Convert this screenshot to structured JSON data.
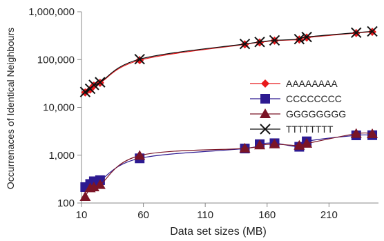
{
  "chart_data": {
    "type": "line",
    "title": "",
    "xlabel": "Data set sizes (MB)",
    "ylabel": "Occurrenaces of Identical Neighbours",
    "xlim": [
      10,
      250
    ],
    "ylim": [
      100,
      1000000
    ],
    "yscale": "log",
    "x_ticks": [
      10,
      60,
      110,
      160,
      210
    ],
    "x_tick_labels": [
      "10",
      "60",
      "110",
      "160",
      "210"
    ],
    "y_ticks": [
      100,
      1000,
      10000,
      100000,
      1000000
    ],
    "y_tick_labels": [
      "100",
      "1,000",
      "10,000",
      "100,000",
      "1,000,000"
    ],
    "grid": false,
    "legend_position": "right-middle",
    "series": [
      {
        "name": "AAAAAAAA",
        "color": "#e8191c",
        "marker": "diamond",
        "x": [
          13,
          17,
          20,
          25,
          57,
          142,
          154,
          166,
          186,
          192,
          232,
          245
        ],
        "y": [
          20500,
          23500,
          28500,
          32500,
          97000,
          208000,
          228000,
          248000,
          262000,
          288000,
          358000,
          380000
        ]
      },
      {
        "name": "CCCCCCCC",
        "color": "#2d1a91",
        "marker": "square",
        "x": [
          13,
          17,
          20,
          25,
          57,
          142,
          154,
          166,
          186,
          192,
          232,
          245
        ],
        "y": [
          215,
          250,
          285,
          300,
          860,
          1380,
          1700,
          1780,
          1500,
          1950,
          2600,
          2620
        ]
      },
      {
        "name": "GGGGGGGG",
        "color": "#7a1426",
        "marker": "triangle",
        "x": [
          13,
          17,
          20,
          25,
          57,
          142,
          154,
          166,
          186,
          192,
          232,
          245
        ],
        "y": [
          135,
          205,
          215,
          240,
          980,
          1390,
          1620,
          1700,
          1590,
          1750,
          2820,
          2780
        ]
      },
      {
        "name": "TTTTTTTT",
        "color": "#111111",
        "marker": "x",
        "x": [
          13,
          17,
          20,
          25,
          57,
          142,
          154,
          166,
          186,
          192,
          232,
          245
        ],
        "y": [
          21000,
          24500,
          29500,
          33500,
          102000,
          212000,
          233000,
          252000,
          267000,
          296000,
          365000,
          388000
        ]
      }
    ]
  }
}
